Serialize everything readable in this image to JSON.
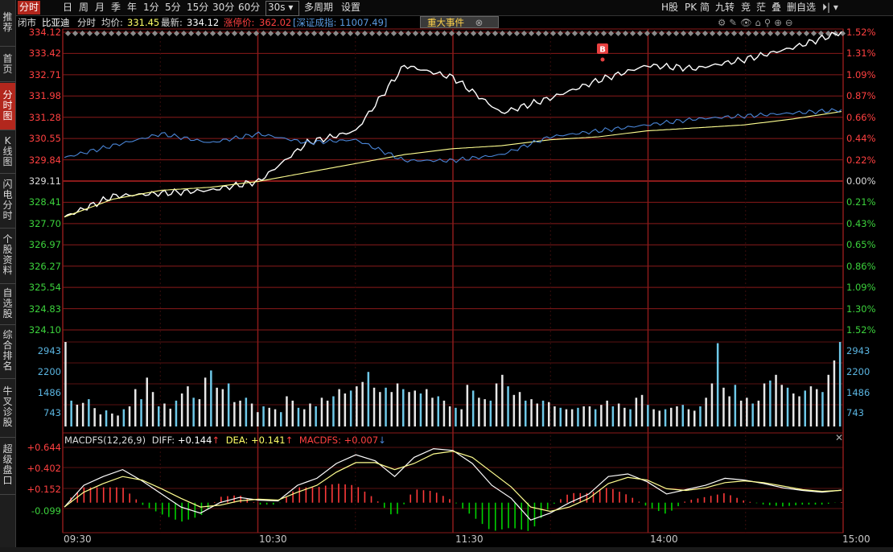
{
  "sidebar": {
    "items": [
      {
        "label": "推荐",
        "active": false
      },
      {
        "label": "首页",
        "active": false
      },
      {
        "label": "分时图",
        "active": true
      },
      {
        "label": "K线图",
        "active": false
      },
      {
        "label": "闪电分时",
        "active": false
      },
      {
        "label": "个股资料",
        "active": false
      },
      {
        "label": "自选股",
        "active": false
      },
      {
        "label": "综合排名",
        "active": false
      },
      {
        "label": "牛叉诊股",
        "active": false
      },
      {
        "label": "超级盘口",
        "active": false
      }
    ]
  },
  "toolbar": {
    "periods": [
      "分时",
      "日",
      "周",
      "月",
      "季",
      "年",
      "1分",
      "5分",
      "15分",
      "30分",
      "60分"
    ],
    "interval": "30s",
    "multi_period": "多周期",
    "settings": "设置",
    "right_items": [
      "H股",
      "PK",
      "简",
      "九转",
      "竞",
      "茫",
      "叠",
      "删自选"
    ]
  },
  "info": {
    "status": "闭市",
    "name": "比亚迪",
    "mode": "分时",
    "avg_label": "均价:",
    "avg_value": "331.45",
    "last_label": "最新:",
    "last_value": "334.12",
    "limit_label": "涨停价:",
    "limit_value": "362.02",
    "index_text": "[深证成指: 11007.49]",
    "event_tag": "重大事件",
    "event_close": "⊗"
  },
  "colors": {
    "up": "#ff3a3a",
    "down": "#00d000",
    "price_line": "#ffffff",
    "avg_line": "#ffff90",
    "index_line": "#4a86d8",
    "grid": "#8a1a1a",
    "axis_text_up": "#ff4040",
    "axis_text_down": "#3cd23c",
    "accent": "#b2271d"
  },
  "price_axis": {
    "left_labels": [
      "334.12",
      "333.42",
      "332.71",
      "331.98",
      "331.28",
      "330.55",
      "329.84",
      "329.11",
      "328.41",
      "327.70",
      "326.97",
      "326.27",
      "325.54",
      "324.83",
      "324.10"
    ],
    "right_labels": [
      "1.52%",
      "1.31%",
      "1.09%",
      "0.87%",
      "0.66%",
      "0.44%",
      "0.22%",
      "0.00%",
      "0.21%",
      "0.43%",
      "0.65%",
      "0.86%",
      "1.09%",
      "1.30%",
      "1.52%"
    ]
  },
  "volume_axis": {
    "labels": [
      "2943",
      "2200",
      "1486",
      "743"
    ]
  },
  "macd": {
    "title": "MACDFS(12,26,9)",
    "diff_label": "DIFF:",
    "diff_value": "+0.144",
    "dea_label": "DEA:",
    "dea_value": "+0.141",
    "macdfs_label": "MACDFS:",
    "macdfs_value": "+0.007",
    "axis_labels": [
      "+0.644",
      "+0.402",
      "+0.152",
      "-0.099"
    ]
  },
  "time_axis": {
    "labels": [
      "09:30",
      "10:30",
      "11:30",
      "14:00",
      "15:00"
    ]
  },
  "trade_marker": "B",
  "chart_data": {
    "type": "line",
    "title": "",
    "xlabel": "",
    "ylabel": "",
    "x": [
      "09:30",
      "09:45",
      "10:00",
      "10:15",
      "10:30",
      "10:45",
      "11:00",
      "11:15",
      "11:30",
      "13:15",
      "13:30",
      "13:45",
      "14:00",
      "14:15",
      "14:30",
      "14:45",
      "15:00"
    ],
    "ylim": [
      324.1,
      334.12
    ],
    "series": [
      {
        "values": [
          327.9,
          328.6,
          328.7,
          328.8,
          329.1,
          330.4,
          330.8,
          333.0,
          332.6,
          331.4,
          331.9,
          332.5,
          333.0,
          332.9,
          333.2,
          333.6,
          334.12
        ]
      },
      {
        "values": [
          327.9,
          328.5,
          328.8,
          328.9,
          329.1,
          329.4,
          329.7,
          330.0,
          330.2,
          330.3,
          330.5,
          330.6,
          330.8,
          330.9,
          331.0,
          331.2,
          331.45
        ]
      },
      {
        "values": [
          329.9,
          330.3,
          330.7,
          330.4,
          330.7,
          330.4,
          330.5,
          329.8,
          329.8,
          330.0,
          330.6,
          330.8,
          331.0,
          331.2,
          331.3,
          331.4,
          331.5
        ]
      }
    ],
    "volume": {
      "ylim": [
        0,
        2943
      ],
      "values": [
        2943,
        900,
        760,
        820,
        950,
        640,
        420,
        560,
        450,
        380,
        600,
        700,
        1300,
        950,
        1700,
        1200,
        700,
        800,
        620,
        900,
        1150,
        1400,
        1000,
        950,
        1700,
        1950,
        1350,
        1300,
        1500,
        850,
        900,
        1000,
        800,
        500,
        700,
        650,
        600,
        500,
        1050,
        900,
        650,
        600,
        800,
        700,
        1000,
        900,
        1050,
        1300,
        1150,
        1250,
        1400,
        1550,
        1900,
        1350,
        1200,
        1350,
        1200,
        1500,
        1300,
        1200,
        1250,
        1150,
        1300,
        1000,
        1050,
        900,
        700,
        650,
        600,
        1450,
        1250,
        1000,
        950,
        900,
        1500,
        1800,
        1400,
        1100,
        1200,
        900,
        950,
        800,
        900,
        850,
        700,
        650,
        600,
        600,
        650,
        700,
        700,
        600,
        750,
        900,
        700,
        800,
        650,
        600,
        1000,
        1100,
        750,
        600,
        550,
        600,
        650,
        700,
        750,
        600,
        550,
        700,
        1000,
        1500,
        2900,
        1350,
        1050,
        1450,
        900,
        1000,
        800,
        900,
        1500,
        1600,
        1800,
        1450,
        1350,
        1150,
        1050,
        1250,
        1400,
        1300,
        1200,
        1800,
        2300,
        2943
      ]
    },
    "macd": {
      "ylim": [
        -0.28,
        0.644
      ],
      "diff": [
        -0.05,
        0.2,
        0.3,
        0.38,
        0.25,
        0.1,
        -0.05,
        -0.12,
        0.0,
        0.06,
        0.03,
        0.02,
        0.2,
        0.28,
        0.45,
        0.55,
        0.48,
        0.3,
        0.52,
        0.62,
        0.6,
        0.45,
        0.2,
        0.05,
        -0.2,
        -0.12,
        0.0,
        0.1,
        0.3,
        0.33,
        0.24,
        0.1,
        0.15,
        0.2,
        0.28,
        0.26,
        0.22,
        0.17,
        0.14,
        0.12,
        0.144
      ],
      "dea": [
        -0.05,
        0.12,
        0.22,
        0.3,
        0.26,
        0.16,
        0.05,
        -0.05,
        -0.03,
        0.02,
        0.04,
        0.03,
        0.12,
        0.2,
        0.35,
        0.46,
        0.46,
        0.38,
        0.45,
        0.56,
        0.59,
        0.52,
        0.35,
        0.18,
        -0.05,
        -0.1,
        -0.05,
        0.05,
        0.22,
        0.29,
        0.26,
        0.16,
        0.14,
        0.17,
        0.23,
        0.25,
        0.23,
        0.19,
        0.15,
        0.13,
        0.141
      ]
    }
  }
}
